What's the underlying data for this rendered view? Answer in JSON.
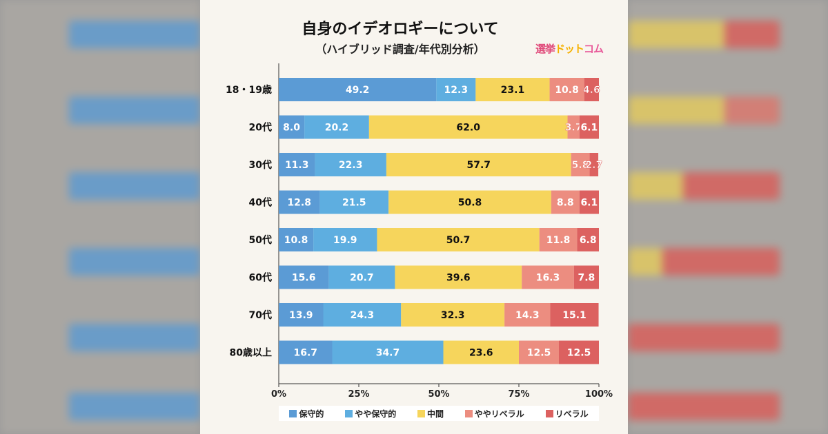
{
  "chart_data": {
    "type": "bar",
    "orientation": "horizontal",
    "stacked": "percent",
    "title": "自身のイデオロギーについて",
    "subtitle": "（ハイブリッド調査/年代別分析）",
    "categories": [
      "18・19歳",
      "20代",
      "30代",
      "40代",
      "50代",
      "60代",
      "70代",
      "80歳以上"
    ],
    "series": [
      {
        "name": "保守的",
        "color": "#5b9bd5",
        "values": [
          49.2,
          8.0,
          11.3,
          12.8,
          10.8,
          15.6,
          13.9,
          16.7
        ]
      },
      {
        "name": "やや保守的",
        "color": "#5eaee0",
        "values": [
          12.3,
          20.2,
          22.3,
          21.5,
          19.9,
          20.7,
          24.3,
          34.7
        ]
      },
      {
        "name": "中間",
        "color": "#f6d55c",
        "values": [
          23.1,
          62.0,
          57.7,
          50.8,
          50.7,
          39.6,
          32.3,
          23.6
        ]
      },
      {
        "name": "ややリベラル",
        "color": "#ec8d80",
        "values": [
          10.8,
          3.7,
          5.8,
          8.8,
          11.8,
          16.3,
          14.3,
          12.5
        ]
      },
      {
        "name": "リベラル",
        "color": "#dc6160",
        "values": [
          4.6,
          6.1,
          2.7,
          6.1,
          6.8,
          7.8,
          15.1,
          12.5
        ]
      }
    ],
    "xlim": [
      0,
      100
    ],
    "xticks": [
      "0%",
      "25%",
      "50%",
      "75%",
      "100%"
    ],
    "legend": "bottom",
    "grid": false
  },
  "logo": "選挙ドットコム"
}
